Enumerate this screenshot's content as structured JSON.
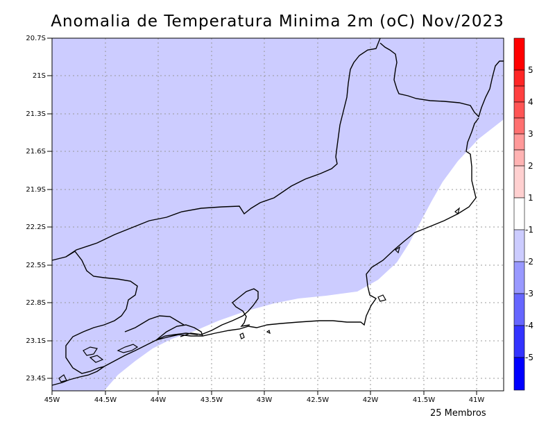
{
  "title": "Anomalia de Temperatura Minima 2m (oC) Nov/2023",
  "footer": "25 Membros",
  "map": {
    "lon_range": [
      -45,
      -40.75
    ],
    "lat_range": [
      -23.5,
      -20.7
    ],
    "lat_ticks": [
      "20.7S",
      "21S",
      "21.3S",
      "21.6S",
      "21.9S",
      "22.2S",
      "22.5S",
      "22.8S",
      "23.1S",
      "23.4S"
    ],
    "lon_ticks": [
      "45W",
      "44.5W",
      "44W",
      "43.5W",
      "43W",
      "42.5W",
      "42W",
      "41.5W",
      "41W"
    ],
    "grid": true,
    "fill_colors": {
      "anomaly_minus1_to_0": "#ccccff",
      "anomaly_neutral": "#ffffff"
    }
  },
  "colorbar": {
    "labels": [
      "5",
      "4",
      "3",
      "2",
      "1",
      "-1",
      "-2",
      "-3",
      "-4",
      "-5"
    ],
    "colors": [
      "#ff0000",
      "#ff2626",
      "#ff5555",
      "#ff8888",
      "#ffb3b3",
      "#ffdddd",
      "#ffffff",
      "#ccccff",
      "#aaaaff",
      "#8080ff",
      "#5555ff",
      "#2d2dff",
      "#0000ff"
    ]
  }
}
